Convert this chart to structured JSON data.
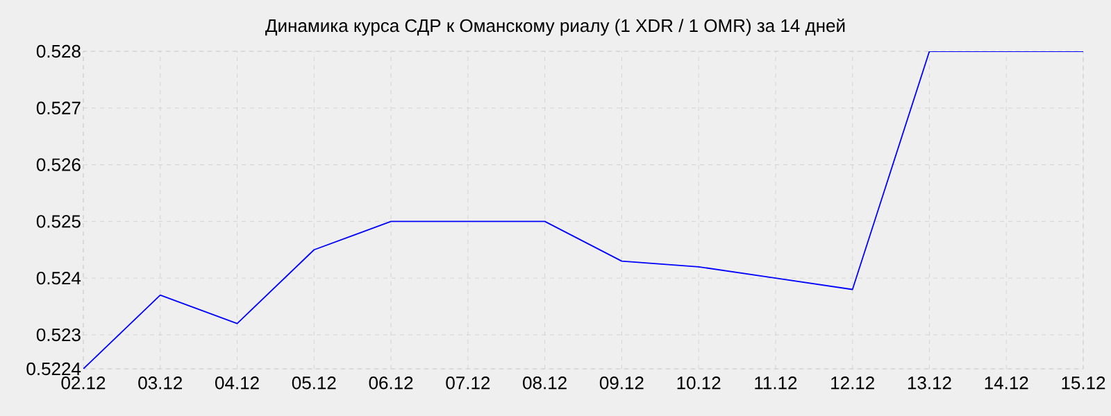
{
  "chart_data": {
    "type": "line",
    "title": "Динамика курса СДР к Оманскому риалу (1 XDR / 1 OMR) за 14 дней",
    "categories": [
      "02.12",
      "03.12",
      "04.12",
      "05.12",
      "06.12",
      "07.12",
      "08.12",
      "09.12",
      "10.12",
      "11.12",
      "12.12",
      "13.12",
      "14.12",
      "15.12"
    ],
    "series": [
      {
        "color": "#0000ff",
        "values": [
          0.5224,
          0.5237,
          0.5232,
          0.5245,
          0.525,
          0.525,
          0.525,
          0.5243,
          0.5242,
          0.524,
          0.5238,
          0.528,
          0.528,
          0.528
        ]
      }
    ],
    "ylim": [
      0.5224,
      0.528
    ],
    "yticks": [
      0.5224,
      0.523,
      0.524,
      0.525,
      0.526,
      0.527,
      0.528
    ],
    "grid": true,
    "marker": "none",
    "line_style": "solid"
  }
}
